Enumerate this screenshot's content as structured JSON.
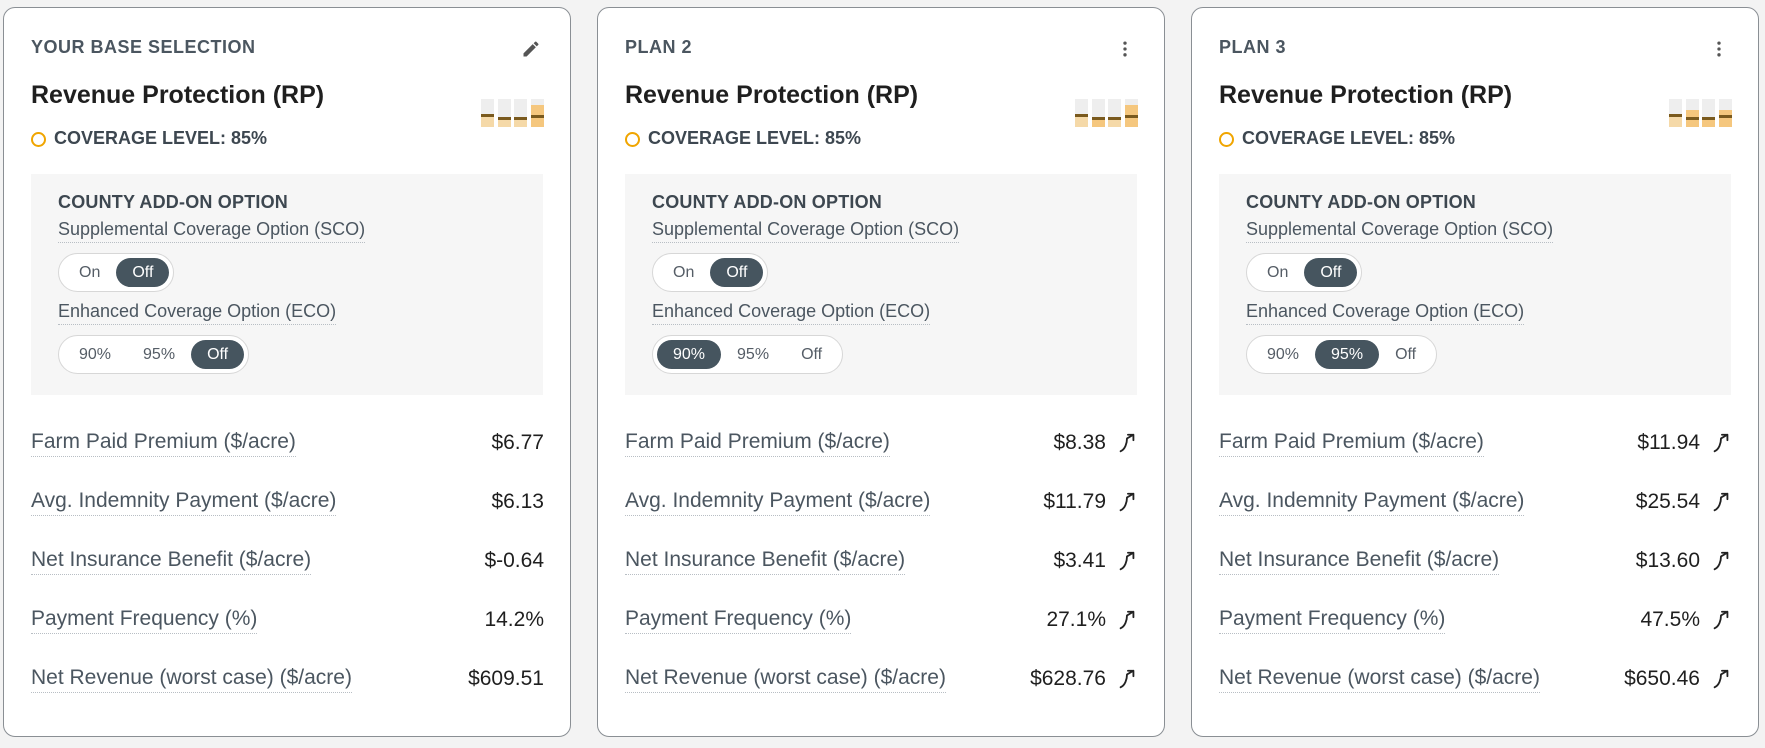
{
  "cards": [
    {
      "label": "YOUR BASE SELECTION",
      "action_icon": "pencil-icon",
      "plan_name": "Revenue Protection (RP)",
      "coverage_label": "COVERAGE LEVEL:",
      "coverage_value": "85%",
      "addon_title": "COUNTY ADD-ON OPTION",
      "sco_label": "Supplemental Coverage Option (SCO)",
      "sco_options": [
        "On",
        "Off"
      ],
      "sco_selected": "Off",
      "eco_label": "Enhanced Coverage Option (ECO)",
      "eco_options": [
        "90%",
        "95%",
        "Off"
      ],
      "eco_selected": "Off",
      "metrics": [
        {
          "label": "Farm Paid Premium ($/acre)",
          "value": "$6.77"
        },
        {
          "label": "Avg. Indemnity Payment ($/acre)",
          "value": "$6.13"
        },
        {
          "label": "Net Insurance Benefit ($/acre)",
          "value": "$-0.64"
        },
        {
          "label": "Payment Frequency (%)",
          "value": "14.2%"
        },
        {
          "label": "Net Revenue (worst case) ($/acre)",
          "value": "$609.51"
        }
      ],
      "trend_icon": ""
    },
    {
      "label": "PLAN 2",
      "action_icon": "more-vertical-icon",
      "plan_name": "Revenue Protection (RP)",
      "coverage_label": "COVERAGE LEVEL:",
      "coverage_value": "85%",
      "addon_title": "COUNTY ADD-ON OPTION",
      "sco_label": "Supplemental Coverage Option (SCO)",
      "sco_options": [
        "On",
        "Off"
      ],
      "sco_selected": "Off",
      "eco_label": "Enhanced Coverage Option (ECO)",
      "eco_options": [
        "90%",
        "95%",
        "Off"
      ],
      "eco_selected": "90%",
      "metrics": [
        {
          "label": "Farm Paid Premium ($/acre)",
          "value": "$8.38"
        },
        {
          "label": "Avg. Indemnity Payment ($/acre)",
          "value": "$11.79"
        },
        {
          "label": "Net Insurance Benefit ($/acre)",
          "value": "$3.41"
        },
        {
          "label": "Payment Frequency (%)",
          "value": "27.1%"
        },
        {
          "label": "Net Revenue (worst case) ($/acre)",
          "value": "$628.76"
        }
      ],
      "trend_icon": "trending-up-icon"
    },
    {
      "label": "PLAN 3",
      "action_icon": "more-vertical-icon",
      "plan_name": "Revenue Protection (RP)",
      "coverage_label": "COVERAGE LEVEL:",
      "coverage_value": "85%",
      "addon_title": "COUNTY ADD-ON OPTION",
      "sco_label": "Supplemental Coverage Option (SCO)",
      "sco_options": [
        "On",
        "Off"
      ],
      "sco_selected": "Off",
      "eco_label": "Enhanced Coverage Option (ECO)",
      "eco_options": [
        "90%",
        "95%",
        "Off"
      ],
      "eco_selected": "95%",
      "metrics": [
        {
          "label": "Farm Paid Premium ($/acre)",
          "value": "$11.94"
        },
        {
          "label": "Avg. Indemnity Payment ($/acre)",
          "value": "$25.54"
        },
        {
          "label": "Net Insurance Benefit ($/acre)",
          "value": "$13.60"
        },
        {
          "label": "Payment Frequency (%)",
          "value": "47.5%"
        },
        {
          "label": "Net Revenue (worst case) ($/acre)",
          "value": "$650.46"
        }
      ],
      "trend_icon": "trending-up-icon"
    }
  ],
  "colors": {
    "accent_ring": "#f0a500",
    "toggle_active": "#46555f",
    "mini_dark": "#7a5a1e",
    "mini_light": "#f5c77e",
    "mini_track": "#eeeeee"
  }
}
